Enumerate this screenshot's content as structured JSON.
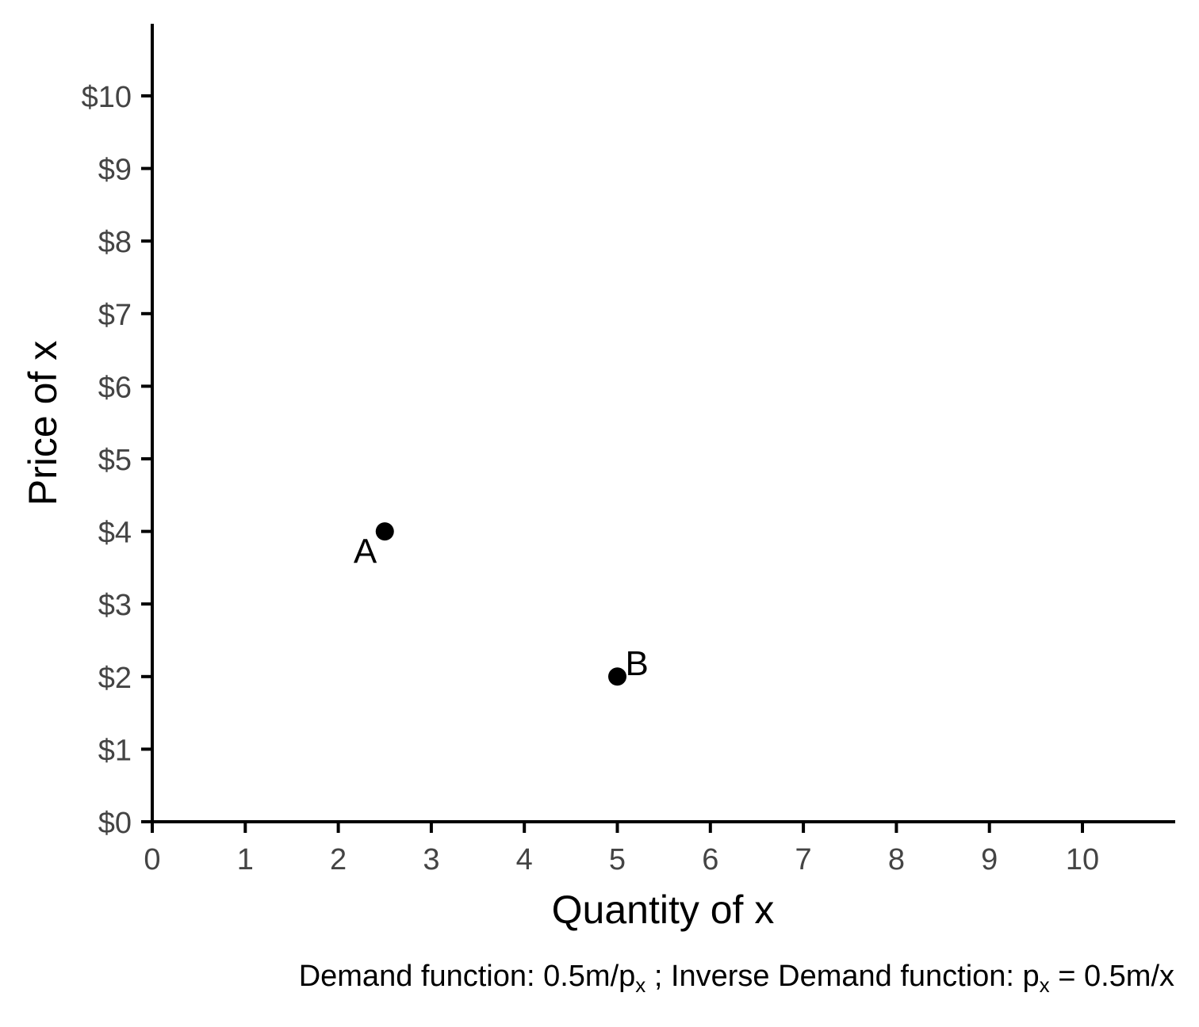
{
  "chart_data": {
    "type": "scatter",
    "xlabel": "Quantity of x",
    "ylabel": "Price of x",
    "xlim": [
      0,
      11
    ],
    "ylim": [
      0,
      11
    ],
    "x_ticks": [
      0,
      1,
      2,
      3,
      4,
      5,
      6,
      7,
      8,
      9,
      10
    ],
    "y_ticks": [
      0,
      1,
      2,
      3,
      4,
      5,
      6,
      7,
      8,
      9,
      10
    ],
    "x_tick_labels": [
      "0",
      "1",
      "2",
      "3",
      "4",
      "5",
      "6",
      "7",
      "8",
      "9",
      "10"
    ],
    "y_tick_labels": [
      "$0",
      "$1",
      "$2",
      "$3",
      "$4",
      "$5",
      "$6",
      "$7",
      "$8",
      "$9",
      "$10"
    ],
    "grid": false,
    "points": [
      {
        "label": "A",
        "x": 2.5,
        "y": 4
      },
      {
        "label": "B",
        "x": 5,
        "y": 2
      }
    ],
    "caption": {
      "part1": "Demand function: 0.5m/p",
      "sub1": "x",
      "part2": " ; Inverse Demand function: p",
      "sub2": "x",
      "part3": " = 0.5m/x"
    },
    "colors": {
      "axis": "#000000",
      "tick_text": "#444444",
      "point": "#000000"
    }
  }
}
